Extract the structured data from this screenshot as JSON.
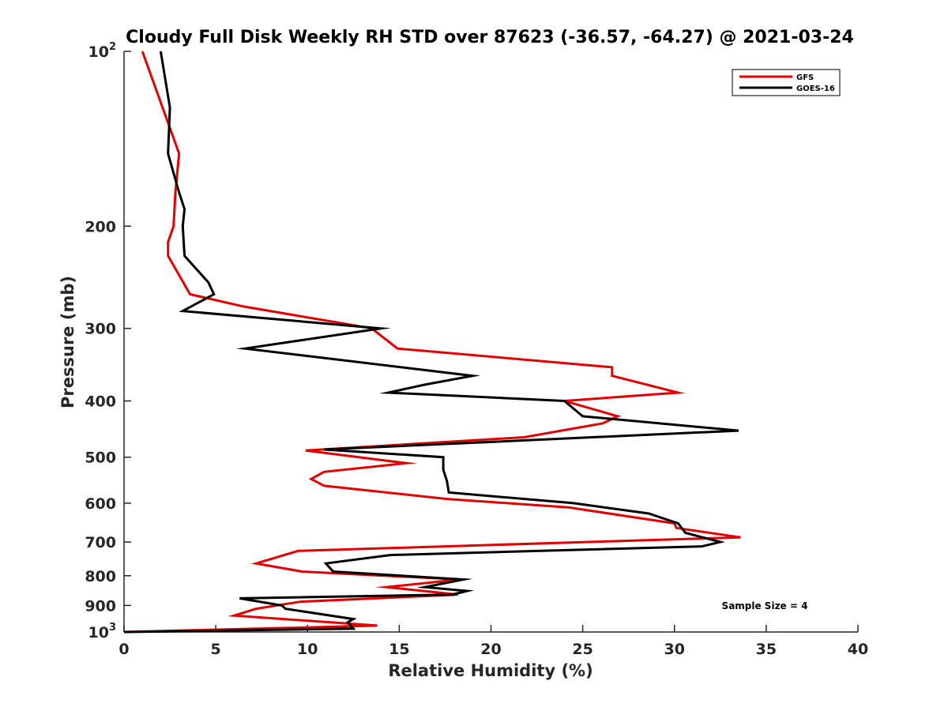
{
  "chart_data": {
    "type": "line",
    "title": "Cloudy Full Disk Weekly RH STD over 87623 (-36.57, -64.27) @ 2021-03-24",
    "xlabel": "Relative Humidity (%)",
    "ylabel": "Pressure (mb)",
    "xlim": [
      0,
      40
    ],
    "ylim": [
      100,
      1000
    ],
    "yscale": "log",
    "y_reversed": true,
    "x_ticks": [
      "0",
      "5",
      "10",
      "15",
      "20",
      "25",
      "30",
      "35",
      "40"
    ],
    "y_ticks": [
      {
        "value": 100,
        "base": "10",
        "exp": "2"
      },
      {
        "value": 200,
        "base": "200",
        "exp": ""
      },
      {
        "value": 300,
        "base": "300",
        "exp": ""
      },
      {
        "value": 400,
        "base": "400",
        "exp": ""
      },
      {
        "value": 500,
        "base": "500",
        "exp": ""
      },
      {
        "value": 600,
        "base": "600",
        "exp": ""
      },
      {
        "value": 700,
        "base": "700",
        "exp": ""
      },
      {
        "value": 800,
        "base": "800",
        "exp": ""
      },
      {
        "value": 900,
        "base": "900",
        "exp": ""
      },
      {
        "value": 1000,
        "base": "10",
        "exp": "3"
      }
    ],
    "legend_position": "top-right",
    "annotation": "Sample Size = 4",
    "grid": false,
    "series": [
      {
        "name": "GFS",
        "color": "#e00000",
        "points": [
          [
            1.0,
            100
          ],
          [
            3.0,
            150
          ],
          [
            2.8,
            175
          ],
          [
            2.7,
            200
          ],
          [
            2.4,
            213
          ],
          [
            2.4,
            225
          ],
          [
            3.6,
            262
          ],
          [
            6.5,
            275
          ],
          [
            13.5,
            300
          ],
          [
            14.9,
            325
          ],
          [
            26.6,
            350
          ],
          [
            26.6,
            362
          ],
          [
            30.2,
            387
          ],
          [
            24.0,
            400
          ],
          [
            26.9,
            425
          ],
          [
            26.1,
            437
          ],
          [
            21.8,
            462
          ],
          [
            9.9,
            487
          ],
          [
            15.4,
            512
          ],
          [
            10.9,
            530
          ],
          [
            10.2,
            545
          ],
          [
            10.9,
            560
          ],
          [
            17.6,
            590
          ],
          [
            24.2,
            610
          ],
          [
            30.0,
            650
          ],
          [
            30.1,
            662
          ],
          [
            33.6,
            687
          ],
          [
            9.5,
            725
          ],
          [
            7.2,
            762
          ],
          [
            9.7,
            787
          ],
          [
            18.3,
            812
          ],
          [
            14.3,
            837
          ],
          [
            18.2,
            862
          ],
          [
            9.6,
            887
          ],
          [
            7.2,
            912
          ],
          [
            6.0,
            937
          ],
          [
            13.8,
            975
          ],
          [
            0.0,
            1000
          ]
        ]
      },
      {
        "name": "GOES-16",
        "color": "#000000",
        "points": [
          [
            2.0,
            100
          ],
          [
            2.5,
            125
          ],
          [
            2.4,
            150
          ],
          [
            3.0,
            175
          ],
          [
            3.3,
            187
          ],
          [
            3.2,
            200
          ],
          [
            3.3,
            225
          ],
          [
            4.6,
            250
          ],
          [
            4.9,
            262
          ],
          [
            3.2,
            280
          ],
          [
            14.0,
            300
          ],
          [
            6.6,
            325
          ],
          [
            19.0,
            362
          ],
          [
            16.4,
            375
          ],
          [
            14.4,
            387
          ],
          [
            24.0,
            400
          ],
          [
            25.0,
            425
          ],
          [
            33.5,
            450
          ],
          [
            10.9,
            485
          ],
          [
            17.4,
            500
          ],
          [
            17.4,
            525
          ],
          [
            17.6,
            550
          ],
          [
            17.7,
            575
          ],
          [
            24.5,
            600
          ],
          [
            28.6,
            625
          ],
          [
            30.2,
            650
          ],
          [
            30.6,
            675
          ],
          [
            32.5,
            700
          ],
          [
            31.5,
            712
          ],
          [
            14.5,
            737
          ],
          [
            11.0,
            762
          ],
          [
            11.4,
            787
          ],
          [
            18.5,
            812
          ],
          [
            16.4,
            837
          ],
          [
            18.7,
            850
          ],
          [
            17.9,
            862
          ],
          [
            6.3,
            875
          ],
          [
            8.6,
            900
          ],
          [
            8.8,
            912
          ],
          [
            12.5,
            950
          ],
          [
            12.2,
            962
          ],
          [
            12.5,
            987
          ],
          [
            0.0,
            1000
          ]
        ]
      }
    ]
  }
}
